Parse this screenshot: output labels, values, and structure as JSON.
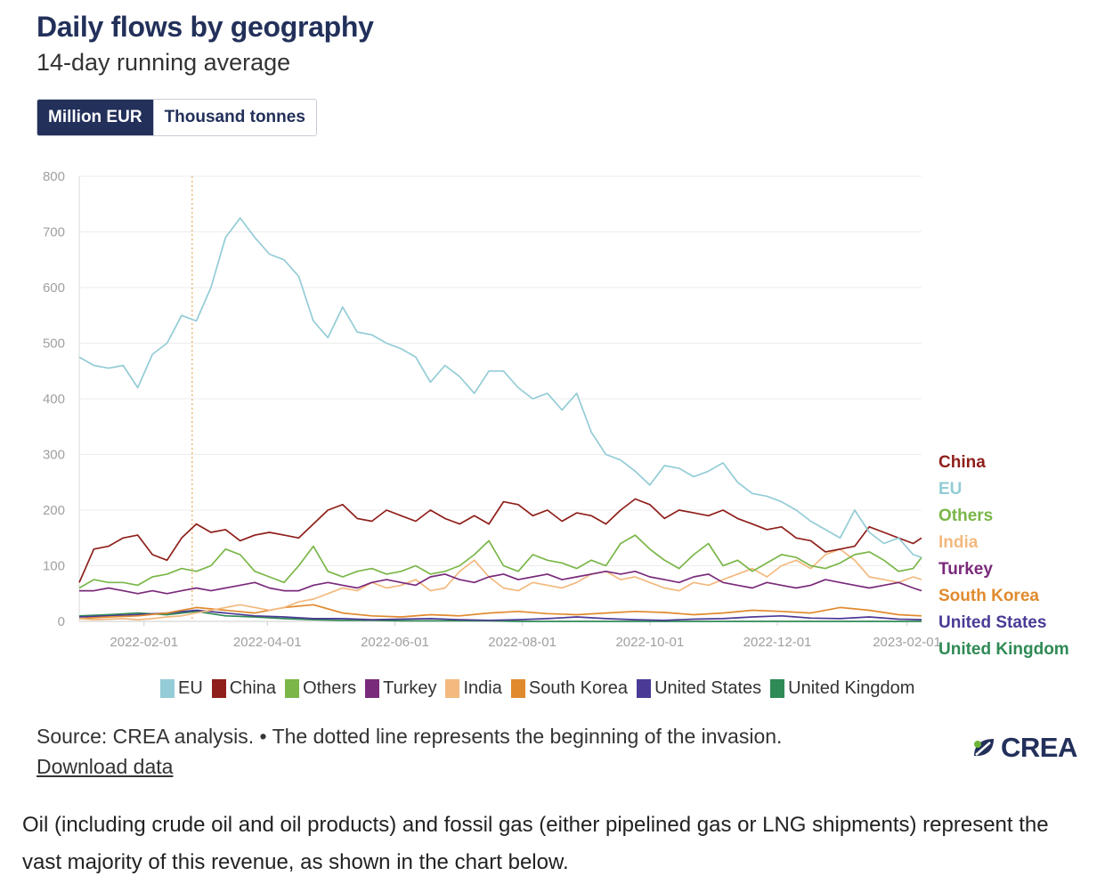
{
  "header": {
    "title": "Daily flows by geography",
    "subtitle": "14-day running average"
  },
  "unit_toggle": {
    "options": [
      "Million EUR",
      "Thousand tonnes"
    ],
    "selected": "Million EUR"
  },
  "chart_data": {
    "type": "line",
    "title": "Daily flows by geography",
    "subtitle": "14-day running average",
    "ylabel": "Million EUR",
    "ylim": [
      0,
      800
    ],
    "yticks": [
      0,
      100,
      200,
      300,
      400,
      500,
      600,
      700,
      800
    ],
    "x_start": "2022-01-01",
    "x_end": "2023-02-08",
    "xticks": [
      "2022-02-01",
      "2022-04-01",
      "2022-06-01",
      "2022-08-01",
      "2022-10-01",
      "2022-12-01",
      "2023-02-01"
    ],
    "grid": true,
    "annotation": {
      "type": "vertical-dotted-line",
      "date": "2022-02-24",
      "label": "beginning of the invasion"
    },
    "series": [
      {
        "name": "EU",
        "color": "#93ccd6",
        "x": [
          "2022-01-01",
          "2022-01-08",
          "2022-01-15",
          "2022-01-22",
          "2022-01-29",
          "2022-02-05",
          "2022-02-12",
          "2022-02-19",
          "2022-02-26",
          "2022-03-05",
          "2022-03-12",
          "2022-03-19",
          "2022-03-26",
          "2022-04-02",
          "2022-04-09",
          "2022-04-16",
          "2022-04-23",
          "2022-04-30",
          "2022-05-07",
          "2022-05-14",
          "2022-05-21",
          "2022-05-28",
          "2022-06-04",
          "2022-06-11",
          "2022-06-18",
          "2022-06-25",
          "2022-07-02",
          "2022-07-09",
          "2022-07-16",
          "2022-07-23",
          "2022-07-30",
          "2022-08-06",
          "2022-08-13",
          "2022-08-20",
          "2022-08-27",
          "2022-09-03",
          "2022-09-10",
          "2022-09-17",
          "2022-09-24",
          "2022-10-01",
          "2022-10-08",
          "2022-10-15",
          "2022-10-22",
          "2022-10-29",
          "2022-11-05",
          "2022-11-12",
          "2022-11-19",
          "2022-11-26",
          "2022-12-03",
          "2022-12-10",
          "2022-12-17",
          "2022-12-24",
          "2022-12-31",
          "2023-01-07",
          "2023-01-14",
          "2023-01-21",
          "2023-01-28",
          "2023-02-04",
          "2023-02-08"
        ],
        "values": [
          475,
          460,
          455,
          460,
          420,
          480,
          500,
          550,
          540,
          600,
          690,
          725,
          690,
          660,
          650,
          620,
          540,
          510,
          565,
          520,
          515,
          500,
          490,
          475,
          430,
          460,
          440,
          410,
          450,
          450,
          420,
          400,
          410,
          380,
          410,
          340,
          300,
          290,
          270,
          245,
          280,
          275,
          260,
          270,
          285,
          250,
          230,
          225,
          215,
          200,
          180,
          165,
          150,
          200,
          160,
          140,
          150,
          120,
          115
        ]
      },
      {
        "name": "China",
        "color": "#8e1f1a",
        "x": [
          "2022-01-01",
          "2022-01-08",
          "2022-01-15",
          "2022-01-22",
          "2022-01-29",
          "2022-02-05",
          "2022-02-12",
          "2022-02-19",
          "2022-02-26",
          "2022-03-05",
          "2022-03-12",
          "2022-03-19",
          "2022-03-26",
          "2022-04-02",
          "2022-04-09",
          "2022-04-16",
          "2022-04-23",
          "2022-04-30",
          "2022-05-07",
          "2022-05-14",
          "2022-05-21",
          "2022-05-28",
          "2022-06-04",
          "2022-06-11",
          "2022-06-18",
          "2022-06-25",
          "2022-07-02",
          "2022-07-09",
          "2022-07-16",
          "2022-07-23",
          "2022-07-30",
          "2022-08-06",
          "2022-08-13",
          "2022-08-20",
          "2022-08-27",
          "2022-09-03",
          "2022-09-10",
          "2022-09-17",
          "2022-09-24",
          "2022-10-01",
          "2022-10-08",
          "2022-10-15",
          "2022-10-22",
          "2022-10-29",
          "2022-11-05",
          "2022-11-12",
          "2022-11-19",
          "2022-11-26",
          "2022-12-03",
          "2022-12-10",
          "2022-12-17",
          "2022-12-24",
          "2022-12-31",
          "2023-01-07",
          "2023-01-14",
          "2023-01-21",
          "2023-01-28",
          "2023-02-04",
          "2023-02-08"
        ],
        "values": [
          70,
          130,
          135,
          150,
          155,
          120,
          110,
          150,
          175,
          160,
          165,
          145,
          155,
          160,
          155,
          150,
          175,
          200,
          210,
          185,
          180,
          200,
          190,
          180,
          200,
          185,
          175,
          190,
          175,
          215,
          210,
          190,
          200,
          180,
          195,
          190,
          175,
          200,
          220,
          210,
          185,
          200,
          195,
          190,
          200,
          185,
          175,
          165,
          170,
          150,
          145,
          125,
          130,
          135,
          170,
          160,
          150,
          140,
          150
        ]
      },
      {
        "name": "Others",
        "color": "#7ab648",
        "x": [
          "2022-01-01",
          "2022-01-08",
          "2022-01-15",
          "2022-01-22",
          "2022-01-29",
          "2022-02-05",
          "2022-02-12",
          "2022-02-19",
          "2022-02-26",
          "2022-03-05",
          "2022-03-12",
          "2022-03-19",
          "2022-03-26",
          "2022-04-02",
          "2022-04-09",
          "2022-04-16",
          "2022-04-23",
          "2022-04-30",
          "2022-05-07",
          "2022-05-14",
          "2022-05-21",
          "2022-05-28",
          "2022-06-04",
          "2022-06-11",
          "2022-06-18",
          "2022-06-25",
          "2022-07-02",
          "2022-07-09",
          "2022-07-16",
          "2022-07-23",
          "2022-07-30",
          "2022-08-06",
          "2022-08-13",
          "2022-08-20",
          "2022-08-27",
          "2022-09-03",
          "2022-09-10",
          "2022-09-17",
          "2022-09-24",
          "2022-10-01",
          "2022-10-08",
          "2022-10-15",
          "2022-10-22",
          "2022-10-29",
          "2022-11-05",
          "2022-11-12",
          "2022-11-19",
          "2022-11-26",
          "2022-12-03",
          "2022-12-10",
          "2022-12-17",
          "2022-12-24",
          "2022-12-31",
          "2023-01-07",
          "2023-01-14",
          "2023-01-21",
          "2023-01-28",
          "2023-02-04",
          "2023-02-08"
        ],
        "values": [
          60,
          75,
          70,
          70,
          65,
          80,
          85,
          95,
          90,
          100,
          130,
          120,
          90,
          80,
          70,
          100,
          135,
          90,
          80,
          90,
          95,
          85,
          90,
          100,
          85,
          90,
          100,
          120,
          145,
          100,
          90,
          120,
          110,
          105,
          95,
          110,
          100,
          140,
          155,
          130,
          110,
          95,
          120,
          140,
          100,
          110,
          90,
          105,
          120,
          115,
          100,
          95,
          105,
          120,
          125,
          110,
          90,
          95,
          115
        ]
      },
      {
        "name": "Turkey",
        "color": "#7a2a7a",
        "x": [
          "2022-01-01",
          "2022-01-08",
          "2022-01-15",
          "2022-01-22",
          "2022-01-29",
          "2022-02-05",
          "2022-02-12",
          "2022-02-19",
          "2022-02-26",
          "2022-03-05",
          "2022-03-12",
          "2022-03-19",
          "2022-03-26",
          "2022-04-02",
          "2022-04-09",
          "2022-04-16",
          "2022-04-23",
          "2022-04-30",
          "2022-05-07",
          "2022-05-14",
          "2022-05-21",
          "2022-05-28",
          "2022-06-04",
          "2022-06-11",
          "2022-06-18",
          "2022-06-25",
          "2022-07-02",
          "2022-07-09",
          "2022-07-16",
          "2022-07-23",
          "2022-07-30",
          "2022-08-06",
          "2022-08-13",
          "2022-08-20",
          "2022-08-27",
          "2022-09-03",
          "2022-09-10",
          "2022-09-17",
          "2022-09-24",
          "2022-10-01",
          "2022-10-08",
          "2022-10-15",
          "2022-10-22",
          "2022-10-29",
          "2022-11-05",
          "2022-11-12",
          "2022-11-19",
          "2022-11-26",
          "2022-12-03",
          "2022-12-10",
          "2022-12-17",
          "2022-12-24",
          "2022-12-31",
          "2023-01-07",
          "2023-01-14",
          "2023-01-21",
          "2023-01-28",
          "2023-02-04",
          "2023-02-08"
        ],
        "values": [
          55,
          55,
          60,
          55,
          50,
          55,
          50,
          55,
          60,
          55,
          60,
          65,
          70,
          60,
          55,
          55,
          65,
          70,
          65,
          60,
          70,
          75,
          70,
          65,
          80,
          85,
          75,
          70,
          80,
          85,
          75,
          80,
          85,
          75,
          80,
          85,
          90,
          85,
          90,
          80,
          75,
          70,
          80,
          85,
          70,
          65,
          60,
          70,
          65,
          60,
          65,
          75,
          70,
          65,
          60,
          65,
          70,
          60,
          55
        ]
      },
      {
        "name": "India",
        "color": "#f3b97e",
        "x": [
          "2022-01-01",
          "2022-01-08",
          "2022-01-15",
          "2022-01-22",
          "2022-01-29",
          "2022-02-05",
          "2022-02-12",
          "2022-02-19",
          "2022-02-26",
          "2022-03-05",
          "2022-03-12",
          "2022-03-19",
          "2022-03-26",
          "2022-04-02",
          "2022-04-09",
          "2022-04-16",
          "2022-04-23",
          "2022-04-30",
          "2022-05-07",
          "2022-05-14",
          "2022-05-21",
          "2022-05-28",
          "2022-06-04",
          "2022-06-11",
          "2022-06-18",
          "2022-06-25",
          "2022-07-02",
          "2022-07-09",
          "2022-07-16",
          "2022-07-23",
          "2022-07-30",
          "2022-08-06",
          "2022-08-13",
          "2022-08-20",
          "2022-08-27",
          "2022-09-03",
          "2022-09-10",
          "2022-09-17",
          "2022-09-24",
          "2022-10-01",
          "2022-10-08",
          "2022-10-15",
          "2022-10-22",
          "2022-10-29",
          "2022-11-05",
          "2022-11-12",
          "2022-11-19",
          "2022-11-26",
          "2022-12-03",
          "2022-12-10",
          "2022-12-17",
          "2022-12-24",
          "2022-12-31",
          "2023-01-07",
          "2023-01-14",
          "2023-01-21",
          "2023-01-28",
          "2023-02-04",
          "2023-02-08"
        ],
        "values": [
          5,
          3,
          4,
          5,
          3,
          5,
          8,
          10,
          15,
          20,
          25,
          30,
          25,
          20,
          25,
          35,
          40,
          50,
          60,
          55,
          70,
          60,
          65,
          75,
          55,
          60,
          90,
          110,
          80,
          60,
          55,
          70,
          65,
          60,
          70,
          85,
          90,
          75,
          80,
          70,
          60,
          55,
          70,
          65,
          75,
          85,
          95,
          80,
          100,
          110,
          95,
          120,
          130,
          110,
          80,
          75,
          70,
          80,
          75
        ]
      },
      {
        "name": "South Korea",
        "color": "#e08a2e",
        "x": [
          "2022-01-01",
          "2022-01-15",
          "2022-01-29",
          "2022-02-12",
          "2022-02-26",
          "2022-03-12",
          "2022-03-26",
          "2022-04-09",
          "2022-04-23",
          "2022-05-07",
          "2022-05-21",
          "2022-06-04",
          "2022-06-18",
          "2022-07-02",
          "2022-07-16",
          "2022-07-30",
          "2022-08-13",
          "2022-08-27",
          "2022-09-10",
          "2022-09-24",
          "2022-10-08",
          "2022-10-22",
          "2022-11-05",
          "2022-11-19",
          "2022-12-03",
          "2022-12-17",
          "2022-12-31",
          "2023-01-14",
          "2023-01-28",
          "2023-02-08"
        ],
        "values": [
          5,
          8,
          10,
          15,
          25,
          20,
          15,
          25,
          30,
          15,
          10,
          8,
          12,
          10,
          15,
          18,
          14,
          12,
          15,
          18,
          16,
          12,
          15,
          20,
          18,
          15,
          25,
          20,
          12,
          10
        ]
      },
      {
        "name": "United States",
        "color": "#4b3a96",
        "x": [
          "2022-01-01",
          "2022-01-15",
          "2022-01-29",
          "2022-02-12",
          "2022-02-26",
          "2022-03-12",
          "2022-03-26",
          "2022-04-09",
          "2022-04-23",
          "2022-05-07",
          "2022-05-21",
          "2022-06-04",
          "2022-06-18",
          "2022-07-02",
          "2022-07-16",
          "2022-07-30",
          "2022-08-13",
          "2022-08-27",
          "2022-09-10",
          "2022-09-24",
          "2022-10-08",
          "2022-10-22",
          "2022-11-05",
          "2022-11-19",
          "2022-12-03",
          "2022-12-17",
          "2022-12-31",
          "2023-01-14",
          "2023-01-28",
          "2023-02-08"
        ],
        "values": [
          8,
          10,
          12,
          15,
          20,
          15,
          10,
          8,
          5,
          5,
          3,
          4,
          5,
          3,
          2,
          3,
          5,
          8,
          5,
          3,
          2,
          4,
          5,
          8,
          10,
          6,
          5,
          8,
          4,
          3
        ]
      },
      {
        "name": "United Kingdom",
        "color": "#2f8a55",
        "x": [
          "2022-01-01",
          "2022-01-15",
          "2022-01-29",
          "2022-02-12",
          "2022-02-26",
          "2022-03-12",
          "2022-03-26",
          "2022-04-09",
          "2022-04-23",
          "2022-05-07",
          "2022-05-21",
          "2022-06-04",
          "2022-06-18",
          "2022-07-02",
          "2022-07-16",
          "2022-07-30",
          "2022-08-13",
          "2022-08-27",
          "2022-09-10",
          "2022-09-24",
          "2022-10-08",
          "2022-10-22",
          "2022-11-05",
          "2022-11-19",
          "2022-12-03",
          "2022-12-17",
          "2022-12-31",
          "2023-01-14",
          "2023-01-28",
          "2023-02-08"
        ],
        "values": [
          10,
          12,
          15,
          12,
          18,
          10,
          8,
          5,
          3,
          2,
          2,
          1,
          1,
          1,
          1,
          0,
          0,
          0,
          0,
          0,
          0,
          0,
          0,
          0,
          0,
          0,
          0,
          0,
          0,
          0
        ]
      }
    ],
    "end_labels": [
      {
        "name": "China",
        "color": "#8e1f1a"
      },
      {
        "name": "EU",
        "color": "#93ccd6"
      },
      {
        "name": "Others",
        "color": "#7ab648"
      },
      {
        "name": "India",
        "color": "#f3b97e"
      },
      {
        "name": "Turkey",
        "color": "#7a2a7a"
      },
      {
        "name": "South Korea",
        "color": "#e08a2e"
      },
      {
        "name": "United States",
        "color": "#4b3a96"
      },
      {
        "name": "United Kingdom",
        "color": "#2f8a55"
      }
    ]
  },
  "legend": {
    "items": [
      {
        "name": "EU",
        "color": "#93ccd6"
      },
      {
        "name": "China",
        "color": "#8e1f1a"
      },
      {
        "name": "Others",
        "color": "#7ab648"
      },
      {
        "name": "Turkey",
        "color": "#7a2a7a"
      },
      {
        "name": "India",
        "color": "#f3b97e"
      },
      {
        "name": "South Korea",
        "color": "#e08a2e"
      },
      {
        "name": "United States",
        "color": "#4b3a96"
      },
      {
        "name": "United Kingdom",
        "color": "#2f8a55"
      }
    ]
  },
  "footer": {
    "source": "Source: CREA analysis. • The dotted line represents the beginning of the invasion.",
    "download_label": "Download data",
    "logo_text": "CREA"
  },
  "article": {
    "text": "Oil (including crude oil and oil products) and fossil gas (either pipelined gas or LNG shipments) represent the vast majority of this revenue, as shown in the chart below."
  }
}
